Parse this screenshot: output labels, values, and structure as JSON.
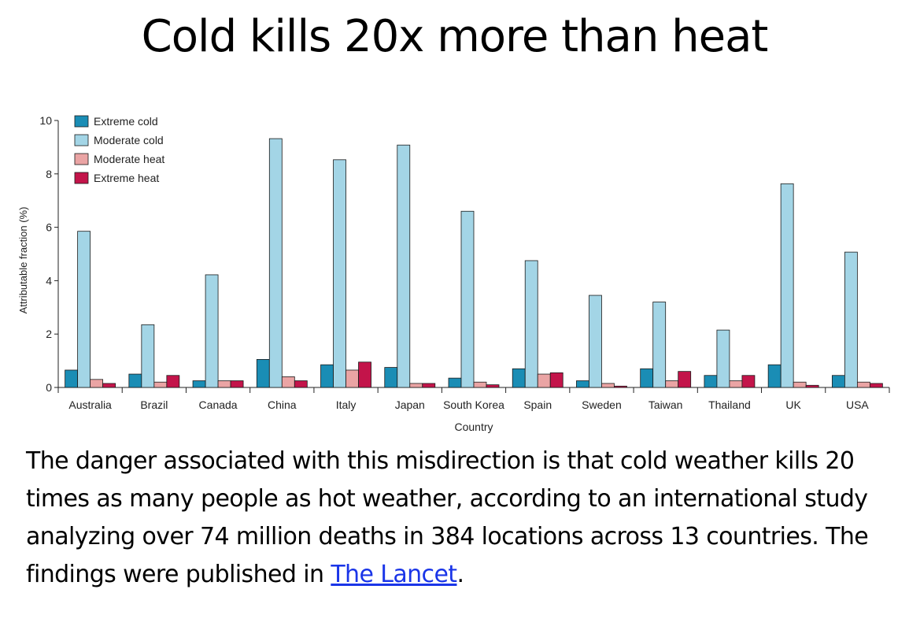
{
  "slide": {
    "title": "Cold kills 20x more than heat",
    "body_text": "The danger associated with this misdirection is that cold weather kills 20 times as many people as hot weather, according to an international study analyzing over 74 million deaths in 384 locations across 13 countries. The findings were published in ",
    "link_text": "The Lancet",
    "body_end": "."
  },
  "chart_data": {
    "type": "bar",
    "title": "",
    "xlabel": "Country",
    "ylabel": "Attributable fraction (%)",
    "ylim": [
      0,
      10
    ],
    "yticks": [
      "0",
      "2",
      "4",
      "6",
      "8",
      "10"
    ],
    "legend_position": "top-left",
    "categories": [
      "Australia",
      "Brazil",
      "Canada",
      "China",
      "Italy",
      "Japan",
      "South Korea",
      "Spain",
      "Sweden",
      "Taiwan",
      "Thailand",
      "UK",
      "USA"
    ],
    "series": [
      {
        "name": "Extreme cold",
        "color": "#1a8db5",
        "values": [
          0.65,
          0.5,
          0.25,
          1.05,
          0.85,
          0.75,
          0.35,
          0.7,
          0.25,
          0.7,
          0.45,
          0.85,
          0.45
        ]
      },
      {
        "name": "Moderate cold",
        "color": "#a3d5e6",
        "values": [
          5.85,
          2.35,
          4.22,
          9.32,
          8.53,
          9.08,
          6.6,
          4.75,
          3.45,
          3.2,
          2.15,
          7.63,
          5.07
        ]
      },
      {
        "name": "Moderate heat",
        "color": "#eaa4a4",
        "values": [
          0.3,
          0.2,
          0.25,
          0.4,
          0.65,
          0.15,
          0.2,
          0.5,
          0.15,
          0.25,
          0.25,
          0.2,
          0.2
        ]
      },
      {
        "name": "Extreme heat",
        "color": "#c3144a",
        "values": [
          0.15,
          0.45,
          0.25,
          0.25,
          0.95,
          0.15,
          0.1,
          0.55,
          0.05,
          0.6,
          0.45,
          0.08,
          0.15
        ]
      }
    ]
  }
}
